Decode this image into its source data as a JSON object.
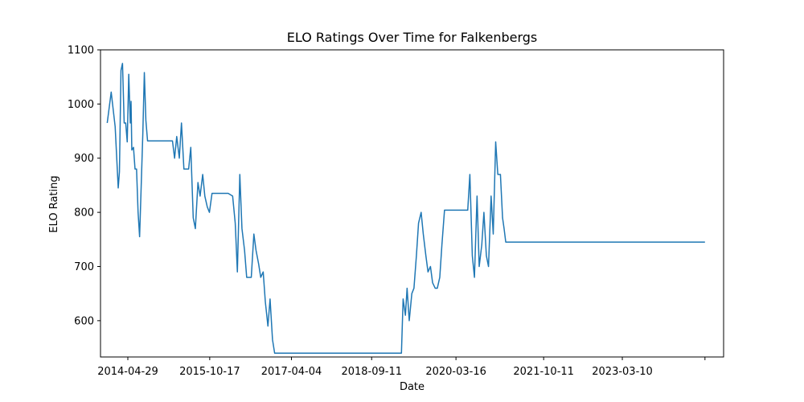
{
  "chart_data": {
    "type": "line",
    "title": "ELO Ratings Over Time for Falkenbergs",
    "xlabel": "Date",
    "ylabel": "ELO Rating",
    "x_tick_labels": [
      "2014-04-29",
      "2015-10-17",
      "2017-04-04",
      "2018-09-11",
      "2020-03-16",
      "2021-10-11",
      "2023-03-10",
      ""
    ],
    "x_tick_values": [
      "2014-04-29",
      "2015-10-17",
      "2017-04-04",
      "2018-09-11",
      "2020-03-16",
      "2021-10-11",
      "2023-03-10",
      "2024-09-01"
    ],
    "y_ticks": [
      600,
      700,
      800,
      900,
      1000,
      1100
    ],
    "xlim": [
      "2013-11-01",
      "2025-01-01"
    ],
    "ylim": [
      533,
      1100
    ],
    "grid": false,
    "color": "#1f77b4",
    "series": [
      {
        "x": [
          "2013-12-15",
          "2014-01-10",
          "2014-02-05",
          "2014-02-25",
          "2014-03-05",
          "2014-03-15",
          "2014-03-25",
          "2014-04-05",
          "2014-04-15",
          "2014-04-25",
          "2014-05-05",
          "2014-05-15",
          "2014-05-20",
          "2014-05-25",
          "2014-06-05",
          "2014-06-15",
          "2014-06-25",
          "2014-07-05",
          "2014-07-15",
          "2014-07-25",
          "2014-08-05",
          "2014-08-15",
          "2014-08-25",
          "2014-09-05",
          "2014-09-15",
          "2014-09-25",
          "2014-10-05",
          "2014-10-25",
          "2015-02-15",
          "2015-03-01",
          "2015-03-15",
          "2015-04-01",
          "2015-04-15",
          "2015-05-01",
          "2015-05-15",
          "2015-06-01",
          "2015-06-15",
          "2015-07-01",
          "2015-07-15",
          "2015-08-01",
          "2015-08-15",
          "2015-09-01",
          "2015-09-15",
          "2015-10-01",
          "2015-10-15",
          "2015-11-01",
          "2015-11-15",
          "2015-12-01",
          "2016-02-15",
          "2016-03-15",
          "2016-04-01",
          "2016-04-15",
          "2016-05-01",
          "2016-05-15",
          "2016-06-01",
          "2016-06-15",
          "2016-07-01",
          "2016-07-15",
          "2016-08-01",
          "2016-08-15",
          "2016-09-01",
          "2016-09-15",
          "2016-10-01",
          "2016-10-15",
          "2016-11-01",
          "2016-11-15",
          "2016-12-01",
          "2016-12-15",
          "2017-01-01",
          "2017-02-15",
          "2018-07-01",
          "2018-08-01",
          "2019-03-25",
          "2019-04-05",
          "2019-04-20",
          "2019-05-01",
          "2019-05-15",
          "2019-06-01",
          "2019-06-15",
          "2019-07-01",
          "2019-07-15",
          "2019-08-01",
          "2019-08-15",
          "2019-09-01",
          "2019-09-15",
          "2019-10-01",
          "2019-10-15",
          "2019-11-01",
          "2019-11-15",
          "2019-12-01",
          "2019-12-15",
          "2020-01-01",
          "2020-02-15",
          "2020-05-01",
          "2020-05-10",
          "2020-05-20",
          "2020-06-01",
          "2020-06-15",
          "2020-07-01",
          "2020-07-15",
          "2020-08-01",
          "2020-08-15",
          "2020-09-01",
          "2020-09-15",
          "2020-10-01",
          "2020-10-15",
          "2020-11-01",
          "2020-11-15",
          "2020-12-01",
          "2020-12-15",
          "2021-01-01",
          "2021-01-15",
          "2021-01-25",
          "2021-02-05",
          "2021-03-01",
          "2024-09-01"
        ],
        "values": [
          965,
          1022,
          958,
          845,
          875,
          1062,
          1075,
          965,
          965,
          930,
          1055,
          965,
          1005,
          915,
          920,
          880,
          880,
          800,
          755,
          845,
          945,
          1058,
          970,
          932,
          932,
          932,
          932,
          932,
          932,
          900,
          940,
          900,
          965,
          880,
          880,
          880,
          920,
          790,
          770,
          855,
          830,
          870,
          830,
          810,
          800,
          835,
          835,
          835,
          835,
          830,
          780,
          690,
          870,
          770,
          730,
          680,
          680,
          680,
          760,
          730,
          705,
          680,
          690,
          635,
          590,
          640,
          565,
          540,
          540,
          540,
          540,
          540,
          540,
          640,
          610,
          660,
          600,
          650,
          660,
          720,
          780,
          800,
          760,
          720,
          690,
          700,
          670,
          660,
          660,
          680,
          740,
          804,
          804,
          804,
          804,
          804,
          804,
          870,
          720,
          680,
          830,
          700,
          740,
          800,
          720,
          700,
          830,
          760,
          930,
          870,
          870,
          790,
          770,
          745,
          745,
          745
        ]
      }
    ]
  }
}
